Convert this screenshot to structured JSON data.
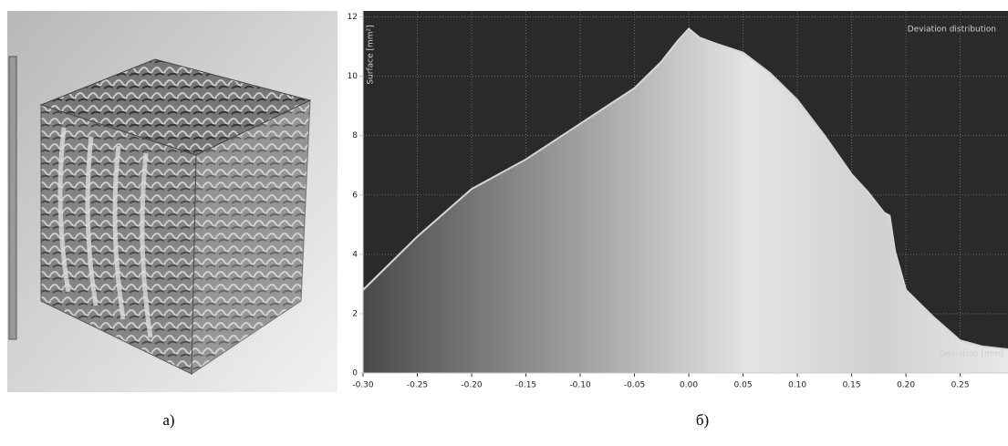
{
  "captions": [
    "а)",
    "б)"
  ],
  "chart_data": {
    "type": "area",
    "title": "Deviation distribution",
    "y_label": "Surface [mm²]",
    "x_label": "Deviation [mm]",
    "x": [
      -0.3,
      -0.275,
      -0.25,
      -0.225,
      -0.2,
      -0.175,
      -0.15,
      -0.125,
      -0.1,
      -0.075,
      -0.05,
      -0.025,
      -0.01,
      0.0,
      0.01,
      0.025,
      0.05,
      0.075,
      0.1,
      0.125,
      0.15,
      0.165,
      0.18,
      0.185,
      0.19,
      0.2,
      0.225,
      0.25,
      0.27,
      0.294
    ],
    "series": [
      {
        "name": "Deviation distribution",
        "color": "#d6d6d6",
        "values": [
          2.8,
          3.7,
          4.6,
          5.4,
          6.2,
          6.7,
          7.2,
          7.8,
          8.4,
          9.0,
          9.6,
          10.5,
          11.2,
          11.6,
          11.3,
          11.1,
          10.8,
          10.1,
          9.2,
          8.0,
          6.7,
          6.1,
          5.4,
          5.3,
          4.1,
          2.8,
          1.9,
          1.1,
          0.9,
          0.8
        ]
      }
    ],
    "xlim": [
      -0.3,
      0.294
    ],
    "ylim": [
      0,
      12.2
    ],
    "xticks": [
      {
        "value": -0.3,
        "label": "-0.30"
      },
      {
        "value": -0.25,
        "label": "-0.25"
      },
      {
        "value": -0.2,
        "label": "-0.20"
      },
      {
        "value": -0.15,
        "label": "-0.15"
      },
      {
        "value": -0.1,
        "label": "-0.10"
      },
      {
        "value": -0.05,
        "label": "-0.05"
      },
      {
        "value": 0.0,
        "label": "0.00"
      },
      {
        "value": 0.05,
        "label": "0.05"
      },
      {
        "value": 0.1,
        "label": "0.10"
      },
      {
        "value": 0.15,
        "label": "0.15"
      },
      {
        "value": 0.2,
        "label": "0.20"
      },
      {
        "value": 0.25,
        "label": "0.25"
      }
    ],
    "yticks": [
      0,
      2,
      4,
      6,
      8,
      10,
      12
    ],
    "grid": true
  }
}
